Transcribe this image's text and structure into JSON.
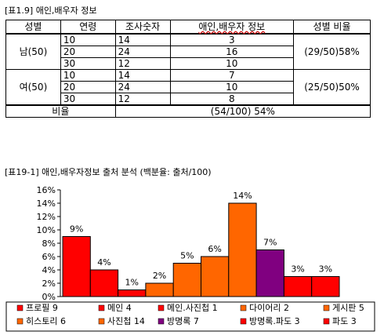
{
  "table_caption": "[표1.9] 애인,배우자 정보",
  "table": {
    "headers": [
      "성별",
      "연령",
      "조사숫자",
      "애인,배우자 정보",
      "성별 비율"
    ],
    "groups": [
      {
        "label": "남(50)",
        "ratio": "(29/50)58%",
        "rows": [
          [
            "10",
            "14",
            "3"
          ],
          [
            "20",
            "24",
            "16"
          ],
          [
            "30",
            "12",
            "10"
          ]
        ]
      },
      {
        "label": "여(50)",
        "ratio": "(25/50)50%",
        "rows": [
          [
            "10",
            "14",
            "7"
          ],
          [
            "20",
            "24",
            "10"
          ],
          [
            "30",
            "12",
            "8"
          ]
        ]
      }
    ],
    "total_label": "비율",
    "total_value": "(54/100)  54%"
  },
  "chart_caption": "[표19-1] 애인,배우자정보 출처 분석 (백분율: 출처/100)",
  "chart_data": {
    "type": "bar",
    "title": "",
    "xlabel": "",
    "ylabel": "",
    "ylim": [
      0,
      16
    ],
    "yticks": [
      "0%",
      "2%",
      "4%",
      "6%",
      "8%",
      "10%",
      "12%",
      "14%",
      "16%"
    ],
    "grid": false,
    "legend_position": "bottom",
    "categories": [
      "프로필 9",
      "메인 4",
      "메인.사진첩 1",
      "다이어리 2",
      "게시판 5",
      "히스토리 6",
      "사진첩 14",
      "방명록 7",
      "방명록.파도 3",
      "파도 3"
    ],
    "values": [
      9,
      4,
      1,
      2,
      5,
      6,
      14,
      7,
      3,
      3
    ],
    "data_labels": [
      "9%",
      "4%",
      "1%",
      "2%",
      "5%",
      "6%",
      "14%",
      "7%",
      "3%",
      "3%"
    ],
    "colors": [
      "#ff0000",
      "#ff0000",
      "#ff0000",
      "#ff6600",
      "#ff6600",
      "#ff6600",
      "#ff6600",
      "#800080",
      "#ff0000",
      "#ff0000"
    ]
  }
}
